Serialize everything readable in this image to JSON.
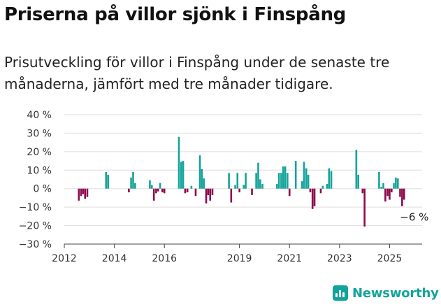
{
  "title": "Priserna på villor sjönk i Finspång",
  "subtitle": "Prisutveckling för villor i Finspång under de senaste tre månaderna, jämfört med tre månader tidigare.",
  "brand": {
    "name": "Newsworthy",
    "icon": "newsworthy-logo-icon",
    "color": "#14a39a"
  },
  "chart_data": {
    "type": "bar",
    "title": "Priserna på villor sjönk i Finspång",
    "subtitle": "Prisutveckling för villor i Finspång under de senaste tre månaderna, jämfört med tre månader tidigare.",
    "xlabel": "",
    "ylabel": "",
    "unit": "%",
    "ylim": [
      -30,
      40
    ],
    "xlim": [
      2012,
      2026.3
    ],
    "grid": true,
    "legend": "none",
    "colors": {
      "positive": "#14a39a",
      "negative": "#8c0a4f"
    },
    "y_ticks": [
      {
        "value": 40,
        "label": "40 %"
      },
      {
        "value": 30,
        "label": "30 %"
      },
      {
        "value": 20,
        "label": "20 %"
      },
      {
        "value": 10,
        "label": "10 %"
      },
      {
        "value": 0,
        "label": "0 %"
      },
      {
        "value": -10,
        "label": "−10 %"
      },
      {
        "value": -20,
        "label": "−20 %"
      },
      {
        "value": -30,
        "label": "−30 %"
      }
    ],
    "x_ticks": [
      {
        "value": 2012,
        "label": "2012"
      },
      {
        "value": 2014,
        "label": "2014"
      },
      {
        "value": 2016,
        "label": "2016"
      },
      {
        "value": 2019,
        "label": "2019"
      },
      {
        "value": 2021,
        "label": "2021"
      },
      {
        "value": 2023,
        "label": "2023"
      },
      {
        "value": 2025,
        "label": "2025"
      }
    ],
    "annotation": {
      "text": "−6 %",
      "x": 2025.47,
      "y": -6
    },
    "bars": [
      {
        "x": 2012.58,
        "y": -6.5
      },
      {
        "x": 2012.67,
        "y": -4
      },
      {
        "x": 2012.75,
        "y": -3
      },
      {
        "x": 2012.83,
        "y": -5.5
      },
      {
        "x": 2012.92,
        "y": -4.5
      },
      {
        "x": 2013.67,
        "y": 9
      },
      {
        "x": 2013.75,
        "y": 7.5
      },
      {
        "x": 2014.58,
        "y": -2
      },
      {
        "x": 2014.67,
        "y": 6
      },
      {
        "x": 2014.75,
        "y": 9
      },
      {
        "x": 2014.83,
        "y": 3
      },
      {
        "x": 2015.42,
        "y": 4.5
      },
      {
        "x": 2015.5,
        "y": 2
      },
      {
        "x": 2015.58,
        "y": -6.5
      },
      {
        "x": 2015.67,
        "y": -2.5
      },
      {
        "x": 2015.75,
        "y": -1.5
      },
      {
        "x": 2015.83,
        "y": 3
      },
      {
        "x": 2015.92,
        "y": -2
      },
      {
        "x": 2016.0,
        "y": -2.5
      },
      {
        "x": 2016.58,
        "y": 28
      },
      {
        "x": 2016.67,
        "y": 14.5
      },
      {
        "x": 2016.75,
        "y": 15
      },
      {
        "x": 2016.83,
        "y": -2.5
      },
      {
        "x": 2016.92,
        "y": -2
      },
      {
        "x": 2017.08,
        "y": 1.5
      },
      {
        "x": 2017.25,
        "y": -4
      },
      {
        "x": 2017.42,
        "y": 18
      },
      {
        "x": 2017.5,
        "y": 10.5
      },
      {
        "x": 2017.58,
        "y": 5.5
      },
      {
        "x": 2017.67,
        "y": -8
      },
      {
        "x": 2017.75,
        "y": -3.5
      },
      {
        "x": 2017.83,
        "y": -6.5
      },
      {
        "x": 2017.92,
        "y": -3.5
      },
      {
        "x": 2018.58,
        "y": 8.5
      },
      {
        "x": 2018.67,
        "y": -7.5
      },
      {
        "x": 2018.83,
        "y": 2
      },
      {
        "x": 2018.92,
        "y": 8.5
      },
      {
        "x": 2019.0,
        "y": -2
      },
      {
        "x": 2019.17,
        "y": 2
      },
      {
        "x": 2019.25,
        "y": 8.5
      },
      {
        "x": 2019.5,
        "y": -3.5
      },
      {
        "x": 2019.67,
        "y": 8.5
      },
      {
        "x": 2019.75,
        "y": 14
      },
      {
        "x": 2019.83,
        "y": 5
      },
      {
        "x": 2019.92,
        "y": 2.5
      },
      {
        "x": 2020.5,
        "y": 2.5
      },
      {
        "x": 2020.58,
        "y": 8.5
      },
      {
        "x": 2020.67,
        "y": 8.5
      },
      {
        "x": 2020.75,
        "y": 12
      },
      {
        "x": 2020.83,
        "y": 12
      },
      {
        "x": 2020.92,
        "y": 8.5
      },
      {
        "x": 2021.0,
        "y": -4
      },
      {
        "x": 2021.25,
        "y": 15
      },
      {
        "x": 2021.5,
        "y": 4
      },
      {
        "x": 2021.58,
        "y": 14.5
      },
      {
        "x": 2021.67,
        "y": 11
      },
      {
        "x": 2021.75,
        "y": 7.5
      },
      {
        "x": 2021.83,
        "y": -2
      },
      {
        "x": 2021.92,
        "y": -11
      },
      {
        "x": 2022.0,
        "y": -9.5
      },
      {
        "x": 2022.25,
        "y": -2.5
      },
      {
        "x": 2022.33,
        "y": 1.5
      },
      {
        "x": 2022.5,
        "y": 2.5
      },
      {
        "x": 2022.58,
        "y": 11
      },
      {
        "x": 2022.67,
        "y": 9.5
      },
      {
        "x": 2023.67,
        "y": 21
      },
      {
        "x": 2023.75,
        "y": 7.5
      },
      {
        "x": 2023.92,
        "y": -2.5
      },
      {
        "x": 2024.0,
        "y": -20.5
      },
      {
        "x": 2024.58,
        "y": 9
      },
      {
        "x": 2024.67,
        "y": 1
      },
      {
        "x": 2024.75,
        "y": 3
      },
      {
        "x": 2024.83,
        "y": -7
      },
      {
        "x": 2024.92,
        "y": -4
      },
      {
        "x": 2025.0,
        "y": -6
      },
      {
        "x": 2025.08,
        "y": -2
      },
      {
        "x": 2025.17,
        "y": 3
      },
      {
        "x": 2025.25,
        "y": 6
      },
      {
        "x": 2025.33,
        "y": 5.5
      },
      {
        "x": 2025.42,
        "y": -4.5
      },
      {
        "x": 2025.5,
        "y": -9.5
      },
      {
        "x": 2025.58,
        "y": -6
      }
    ]
  }
}
